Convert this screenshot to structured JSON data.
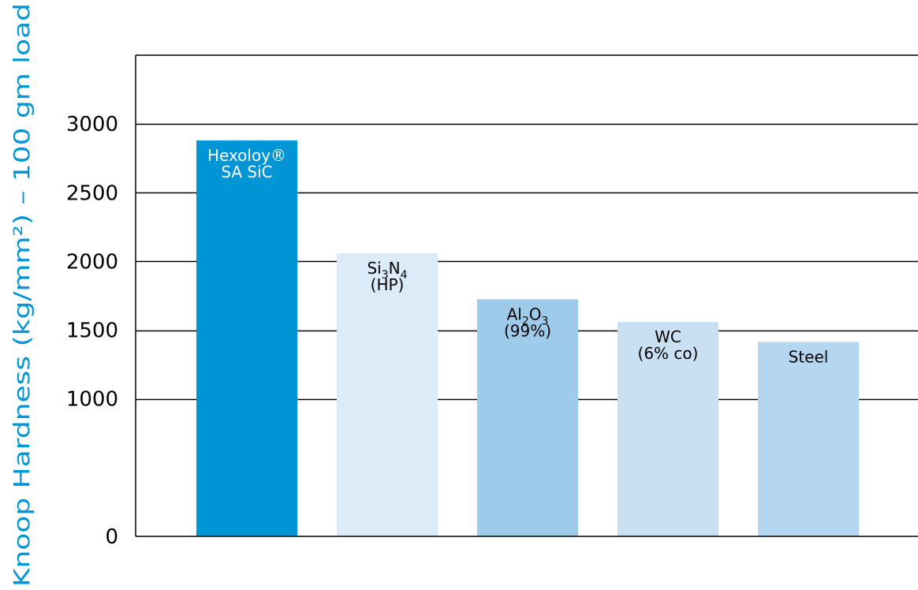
{
  "chart_data": {
    "type": "bar",
    "ylabel": "Knoop Hardness (kg/mm²) – 100 gm load",
    "ylim": [
      0,
      3500
    ],
    "yticks": [
      0,
      1000,
      1500,
      2000,
      2500,
      3000
    ],
    "grid": true,
    "categories": [
      "Hexoloy® SA SiC",
      "Si3N4 (HP)",
      "Al2O3 (99%)",
      "WC (6% co)",
      "Steel"
    ],
    "values": [
      2880,
      2060,
      1725,
      1560,
      1415
    ],
    "bar_labels": [
      [
        {
          "text": "Hexoloy®"
        },
        {
          "text": "SA SiC"
        }
      ],
      [
        {
          "text": "Si",
          "sub": "3",
          "text2": "N",
          "sub2": "4"
        },
        {
          "text": "(HP)"
        }
      ],
      [
        {
          "text": "Al",
          "sub": "2",
          "text2": "O",
          "sub2": "3"
        },
        {
          "text": "(99%)"
        }
      ],
      [
        {
          "text": "WC"
        },
        {
          "text": "(6% co)"
        }
      ],
      [
        {
          "text": "Steel"
        }
      ]
    ],
    "colors": [
      "#0096d6",
      "#dcebf8",
      "#9ecbea",
      "#c9dff2",
      "#b5d6f0"
    ],
    "label_colors": [
      "#ffffff",
      "#000000",
      "#000000",
      "#000000",
      "#000000"
    ],
    "axis_label_color": "#0096d6"
  }
}
